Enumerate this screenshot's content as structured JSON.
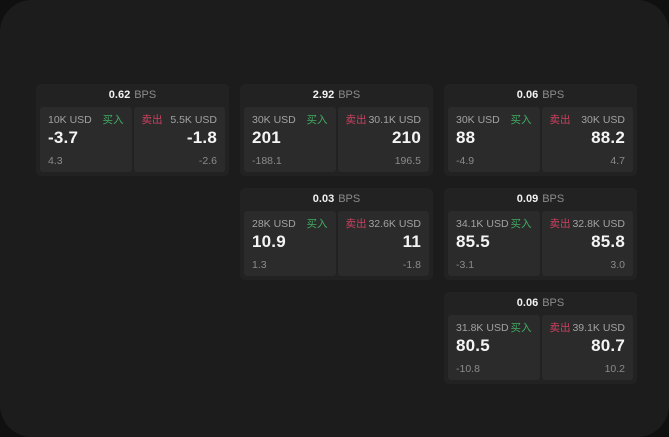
{
  "labels": {
    "bps": "BPS",
    "buy": "买入",
    "sell": "卖出"
  },
  "colors": {
    "outer_background": "#101010",
    "panel_background": "#1c1c1d",
    "card_background": "#222223",
    "subpanel_background": "#2b2b2c",
    "buy_green": "#3fae62",
    "sell_red": "#cc4160",
    "value_white": "#f4f4f5",
    "label_gray": "#a2a2a4",
    "muted_gray": "#8b8b8d"
  },
  "cards": [
    {
      "col": 1,
      "row": 1,
      "bps": "0.62",
      "buy": {
        "size": "10K USD",
        "price": "-3.7",
        "delta": "4.3"
      },
      "sell": {
        "size": "5.5K USD",
        "price": "-1.8",
        "delta": "-2.6"
      }
    },
    {
      "col": 2,
      "row": 1,
      "bps": "2.92",
      "buy": {
        "size": "30K USD",
        "price": "201",
        "delta": "-188.1"
      },
      "sell": {
        "size": "30.1K USD",
        "price": "210",
        "delta": "196.5"
      }
    },
    {
      "col": 3,
      "row": 1,
      "bps": "0.06",
      "buy": {
        "size": "30K USD",
        "price": "88",
        "delta": "-4.9"
      },
      "sell": {
        "size": "30K USD",
        "price": "88.2",
        "delta": "4.7"
      }
    },
    {
      "col": 2,
      "row": 2,
      "bps": "0.03",
      "buy": {
        "size": "28K USD",
        "price": "10.9",
        "delta": "1.3"
      },
      "sell": {
        "size": "32.6K USD",
        "price": "11",
        "delta": "-1.8"
      }
    },
    {
      "col": 3,
      "row": 2,
      "bps": "0.09",
      "buy": {
        "size": "34.1K USD",
        "price": "85.5",
        "delta": "-3.1"
      },
      "sell": {
        "size": "32.8K USD",
        "price": "85.8",
        "delta": "3.0"
      }
    },
    {
      "col": 3,
      "row": 3,
      "bps": "0.06",
      "buy": {
        "size": "31.8K USD",
        "price": "80.5",
        "delta": "-10.8"
      },
      "sell": {
        "size": "39.1K USD",
        "price": "80.7",
        "delta": "10.2"
      }
    }
  ]
}
